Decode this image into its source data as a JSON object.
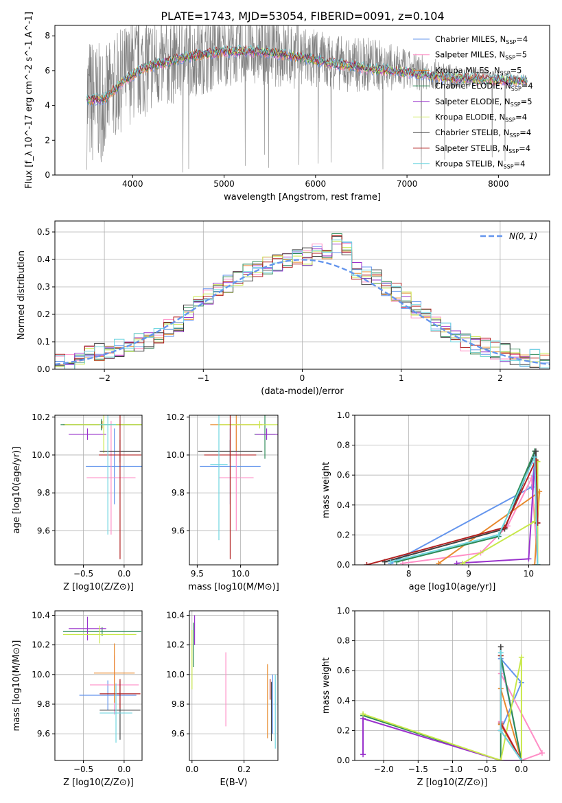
{
  "figure": {
    "title": "PLATE=1743, MJD=53054, FIBERID=0091, z=0.104"
  },
  "colors": {
    "series": [
      "#6495ed",
      "#ff8ec6",
      "#e88a2e",
      "#2e8b57",
      "#9932cc",
      "#c8e84a",
      "#404040",
      "#b22222",
      "#6fd6e0"
    ],
    "data_gray": "#808080",
    "normal_fit": "#6495ed",
    "grid": "#b0b0b0"
  },
  "legend": {
    "spectrum": [
      "Chabrier MILES, N_SSP=4",
      "Salpeter MILES, N_SSP=5",
      "Kroupa MILES, N_SSP=5",
      "Chabrier ELODIE, N_SSP=4",
      "Salpeter ELODIE, N_SSP=5",
      "Kroupa ELODIE, N_SSP=4",
      "Chabrier STELIB, N_SSP=4",
      "Salpeter STELIB, N_SSP=4",
      "Kroupa STELIB, N_SSP=4"
    ],
    "residuals": "N(0, 1)"
  },
  "chart_data": [
    {
      "id": "spectrum",
      "type": "line",
      "title": "PLATE=1743, MJD=53054, FIBERID=0091, z=0.104",
      "xlabel": "wavelength [Angstrom, rest frame]",
      "ylabel": "Flux [f_λ 10^-17 erg cm^-2 s^-1 A^-1]",
      "xlim": [
        3150,
        8560
      ],
      "ylim": [
        0,
        8.6
      ],
      "xticks": [
        4000,
        5000,
        6000,
        7000,
        8000
      ],
      "yticks": [
        0,
        2,
        4,
        6,
        8
      ],
      "grid": false,
      "legend_position": "top-right",
      "data_series": {
        "name": "",
        "color": "#808080",
        "x": [
          3500,
          3600,
          3700,
          3800,
          3900,
          4000,
          4100,
          4200,
          4300,
          4400,
          4500,
          4600,
          4700,
          4800,
          4900,
          5000,
          5200,
          5400,
          5600,
          5800,
          6000,
          6200,
          6400,
          6600,
          6800,
          7000,
          7200,
          7400,
          7600,
          7800,
          8000,
          8200,
          8320
        ],
        "y": [
          4.3,
          4.1,
          4.4,
          5.0,
          5.6,
          6.0,
          6.2,
          6.4,
          6.3,
          6.4,
          6.6,
          6.7,
          6.7,
          6.9,
          7.0,
          7.1,
          7.2,
          7.2,
          7.0,
          6.9,
          6.6,
          6.5,
          6.3,
          6.4,
          6.2,
          6.0,
          5.9,
          5.7,
          5.6,
          5.6,
          5.6,
          5.5,
          5.5
        ],
        "noise_envelope": [
          4.0,
          3.6,
          3.0,
          3.0,
          3.0,
          3.0,
          3.0,
          2.8,
          2.6,
          2.5,
          2.4,
          2.3,
          2.2,
          2.2,
          2.2,
          2.0,
          2.0,
          2.0,
          2.0,
          2.0,
          1.8,
          1.6,
          1.6,
          1.6,
          1.4,
          1.2,
          1.0,
          0.8,
          0.6,
          0.5,
          0.4,
          0.3,
          0.3
        ]
      },
      "models": {
        "x": [
          3500,
          3700,
          3900,
          4100,
          4300,
          4600,
          5000,
          5400,
          5800,
          6200,
          6600,
          7000,
          7400,
          7800,
          8200,
          8320
        ],
        "y": [
          4.3,
          4.4,
          5.4,
          6.1,
          6.4,
          6.8,
          7.1,
          7.1,
          6.8,
          6.4,
          6.1,
          5.9,
          5.6,
          5.5,
          5.4,
          5.4
        ]
      }
    },
    {
      "id": "residuals",
      "type": "line",
      "xlabel": "(data-model)/error",
      "ylabel": "Normed distribution",
      "xlim": [
        -2.5,
        2.5
      ],
      "ylim": [
        0,
        0.54
      ],
      "xticks": [
        -2,
        -1,
        0,
        1,
        2
      ],
      "yticks": [
        0.0,
        0.1,
        0.2,
        0.3,
        0.4,
        0.5
      ],
      "grid": true,
      "legend_position": "top-right",
      "bin_edges": [
        -2.5,
        -2.4,
        -2.3,
        -2.2,
        -2.1,
        -2.0,
        -1.9,
        -1.8,
        -1.7,
        -1.6,
        -1.5,
        -1.4,
        -1.3,
        -1.2,
        -1.1,
        -1.0,
        -0.9,
        -0.8,
        -0.7,
        -0.6,
        -0.5,
        -0.4,
        -0.3,
        -0.2,
        -0.1,
        0.0,
        0.1,
        0.2,
        0.3,
        0.4,
        0.5,
        0.6,
        0.7,
        0.8,
        0.9,
        1.0,
        1.1,
        1.2,
        1.3,
        1.4,
        1.5,
        1.6,
        1.7,
        1.8,
        1.9,
        2.0,
        2.1,
        2.2,
        2.3,
        2.4,
        2.5
      ],
      "hist_means": [
        0.02,
        0.025,
        0.03,
        0.05,
        0.06,
        0.07,
        0.08,
        0.09,
        0.1,
        0.11,
        0.13,
        0.15,
        0.16,
        0.2,
        0.24,
        0.27,
        0.29,
        0.31,
        0.33,
        0.35,
        0.37,
        0.38,
        0.39,
        0.4,
        0.41,
        0.41,
        0.43,
        0.42,
        0.46,
        0.43,
        0.36,
        0.34,
        0.33,
        0.3,
        0.28,
        0.25,
        0.22,
        0.19,
        0.16,
        0.14,
        0.12,
        0.1,
        0.09,
        0.08,
        0.07,
        0.06,
        0.05,
        0.045,
        0.04,
        0.035
      ],
      "normal_curve": "N(0,1) density"
    },
    {
      "id": "age-vs-Z",
      "type": "scatter",
      "xlabel": "Z [log10(Z/Z⊙)]",
      "ylabel": "age [log10(age/yr)]",
      "xlim": [
        -0.85,
        0.22
      ],
      "ylim": [
        9.42,
        10.21
      ],
      "xticks": [
        -0.5,
        0.0
      ],
      "yticks": [
        9.6,
        9.8,
        10.0,
        10.2
      ],
      "grid": true,
      "points": [
        {
          "series": 0,
          "x": -0.12,
          "y": 9.94,
          "xerr": 0.35,
          "yerr": 0.2
        },
        {
          "series": 1,
          "x": -0.16,
          "y": 9.88,
          "xerr": 0.3,
          "yerr": 0.3
        },
        {
          "series": 2,
          "x": -0.27,
          "y": 10.16,
          "xerr": 0.48,
          "yerr": 0.02
        },
        {
          "series": 3,
          "x": -0.28,
          "y": 10.16,
          "xerr": 0.5,
          "yerr": 0.03
        },
        {
          "series": 4,
          "x": -0.45,
          "y": 10.11,
          "xerr": 0.23,
          "yerr": 0.03
        },
        {
          "series": 5,
          "x": -0.25,
          "y": 10.16,
          "xerr": 0.48,
          "yerr": 0.15
        },
        {
          "series": 6,
          "x": -0.05,
          "y": 10.02,
          "xerr": 0.25,
          "yerr": 0.06
        },
        {
          "series": 7,
          "x": -0.05,
          "y": 10.0,
          "xerr": 0.26,
          "yerr": 0.55
        },
        {
          "series": 8,
          "x": -0.2,
          "y": 10.16,
          "xerr": 0.1,
          "yerr": 0.58
        }
      ]
    },
    {
      "id": "age-vs-mass",
      "type": "scatter",
      "xlabel": "mass [log10(M/M⊙)]",
      "ylabel": "",
      "xlim": [
        9.41,
        10.43
      ],
      "ylim": [
        9.42,
        10.21
      ],
      "xticks": [
        9.5,
        10.0
      ],
      "yticks": [
        9.6,
        9.8,
        10.0,
        10.2
      ],
      "grid": true,
      "points": [
        {
          "series": 0,
          "x": 9.88,
          "y": 9.94,
          "xerr": 0.35,
          "yerr": 0.2
        },
        {
          "series": 1,
          "x": 9.95,
          "y": 9.88,
          "xerr": 0.2,
          "yerr": 0.28
        },
        {
          "series": 2,
          "x": 9.95,
          "y": 10.16,
          "xerr": 0.3,
          "yerr": 0.14
        },
        {
          "series": 3,
          "x": 10.28,
          "y": 10.11,
          "xerr": 0.12,
          "yerr": 0.13
        },
        {
          "series": 4,
          "x": 10.3,
          "y": 10.11,
          "xerr": 0.13,
          "yerr": 0.03
        },
        {
          "series": 5,
          "x": 10.22,
          "y": 10.16,
          "xerr": 0.48,
          "yerr": 0.02
        },
        {
          "series": 6,
          "x": 9.88,
          "y": 10.02,
          "xerr": 0.37,
          "yerr": 0.06
        },
        {
          "series": 7,
          "x": 9.88,
          "y": 10.0,
          "xerr": 0.3,
          "yerr": 0.55
        },
        {
          "series": 8,
          "x": 9.75,
          "y": 9.95,
          "xerr": 0.1,
          "yerr": 0.4
        }
      ]
    },
    {
      "id": "massweight-vs-age",
      "type": "line",
      "xlabel": "age [log10(age/yr)]",
      "ylabel": "mass weight",
      "xlim": [
        7.1,
        10.35
      ],
      "ylim": [
        0,
        1.0
      ],
      "xticks": [
        8,
        9,
        10
      ],
      "yticks": [
        0.0,
        0.2,
        0.4,
        0.6,
        0.8,
        1.0
      ],
      "grid": true,
      "series": [
        {
          "name": "Chabrier MILES, N_SSP=4",
          "x": [
            7.7,
            10.05,
            10.1,
            10.15
          ],
          "y": [
            0.01,
            0.52,
            0.68,
            0.0
          ]
        },
        {
          "name": "Salpeter MILES, N_SSP=5",
          "x": [
            7.9,
            9.2,
            9.65,
            10.05,
            10.15
          ],
          "y": [
            0.01,
            0.08,
            0.26,
            0.58,
            0.0
          ]
        },
        {
          "name": "Kroupa MILES, N_SSP=5",
          "x": [
            8.5,
            10.15,
            10.18,
            10.1
          ],
          "y": [
            0.01,
            0.48,
            0.49,
            0.0
          ]
        },
        {
          "name": "Chabrier ELODIE, N_SSP=4",
          "x": [
            7.8,
            9.5,
            10.1,
            10.15
          ],
          "y": [
            0.02,
            0.19,
            0.76,
            0.0
          ]
        },
        {
          "name": "Salpeter ELODIE, N_SSP=5",
          "x": [
            8.8,
            10.0,
            10.1,
            10.15
          ],
          "y": [
            0.01,
            0.04,
            0.68,
            0.0
          ]
        },
        {
          "name": "Kroupa ELODIE, N_SSP=4",
          "x": [
            8.9,
            10.1,
            10.15,
            10.15
          ],
          "y": [
            0.01,
            0.29,
            0.69,
            0.0
          ]
        },
        {
          "name": "Chabrier STELIB, N_SSP=4",
          "x": [
            7.6,
            9.6,
            10.12,
            10.15
          ],
          "y": [
            0.02,
            0.24,
            0.76,
            0.28
          ]
        },
        {
          "name": "Salpeter STELIB, N_SSP=4",
          "x": [
            7.3,
            9.6,
            10.12,
            10.15
          ],
          "y": [
            0.0,
            0.25,
            0.7,
            0.28
          ]
        },
        {
          "name": "Kroupa STELIB, N_SSP=4",
          "x": [
            7.7,
            9.5,
            10.1,
            10.15
          ],
          "y": [
            0.02,
            0.2,
            0.72,
            0.0
          ]
        }
      ]
    },
    {
      "id": "mass-vs-Z",
      "type": "scatter",
      "xlabel": "Z [log10(Z/Z⊙)]",
      "ylabel": "mass [log10(M/M⊙)]",
      "xlim": [
        -0.85,
        0.22
      ],
      "ylim": [
        9.42,
        10.43
      ],
      "xticks": [
        -0.5,
        0.0
      ],
      "yticks": [
        9.6,
        9.8,
        10.0,
        10.2,
        10.4
      ],
      "grid": true,
      "points": [
        {
          "series": 0,
          "x": -0.2,
          "y": 9.86,
          "xerr": 0.35,
          "yerr": 0.1
        },
        {
          "series": 1,
          "x": -0.12,
          "y": 9.93,
          "xerr": 0.3,
          "yerr": 0.2
        },
        {
          "series": 2,
          "x": -0.12,
          "y": 10.01,
          "xerr": 0.25,
          "yerr": 0.2
        },
        {
          "series": 3,
          "x": -0.27,
          "y": 10.29,
          "xerr": 0.48,
          "yerr": 0.03
        },
        {
          "series": 4,
          "x": -0.45,
          "y": 10.31,
          "xerr": 0.23,
          "yerr": 0.08
        },
        {
          "series": 5,
          "x": -0.3,
          "y": 10.27,
          "xerr": 0.45,
          "yerr": 0.06
        },
        {
          "series": 6,
          "x": -0.05,
          "y": 9.76,
          "xerr": 0.25,
          "yerr": 0.2
        },
        {
          "series": 7,
          "x": -0.05,
          "y": 9.87,
          "xerr": 0.25,
          "yerr": 0.1
        },
        {
          "series": 8,
          "x": -0.1,
          "y": 9.74,
          "xerr": 0.2,
          "yerr": 0.2
        }
      ]
    },
    {
      "id": "mass-vs-EBV",
      "type": "scatter",
      "xlabel": "E(B-V)",
      "ylabel": "",
      "xlim": [
        -0.01,
        0.33
      ],
      "ylim": [
        9.42,
        10.43
      ],
      "xticks": [
        0.0,
        0.2
      ],
      "yticks": [
        9.6,
        9.8,
        10.0,
        10.2,
        10.4
      ],
      "grid": true,
      "points": [
        {
          "series": 0,
          "x": 0.31,
          "y": 9.8,
          "xerr": 0.0,
          "yerr": 0.2
        },
        {
          "series": 1,
          "x": 0.13,
          "y": 9.9,
          "xerr": 0.0,
          "yerr": 0.25
        },
        {
          "series": 2,
          "x": 0.29,
          "y": 9.82,
          "xerr": 0.0,
          "yerr": 0.25
        },
        {
          "series": 3,
          "x": 0.005,
          "y": 10.2,
          "xerr": 0.0,
          "yerr": 0.15
        },
        {
          "series": 4,
          "x": 0.01,
          "y": 10.3,
          "xerr": 0.0,
          "yerr": 0.1
        },
        {
          "series": 5,
          "x": 0.0,
          "y": 10.1,
          "xerr": 0.0,
          "yerr": 0.2
        },
        {
          "series": 6,
          "x": 0.305,
          "y": 9.75,
          "xerr": 0.0,
          "yerr": 0.2
        },
        {
          "series": 7,
          "x": 0.3,
          "y": 9.9,
          "xerr": 0.0,
          "yerr": 0.07
        },
        {
          "series": 8,
          "x": 0.32,
          "y": 9.75,
          "xerr": 0.0,
          "yerr": 0.25
        }
      ]
    },
    {
      "id": "massweight-vs-Z",
      "type": "line",
      "xlabel": "Z [log10(Z/Z⊙)]",
      "ylabel": "mass weight",
      "xlim": [
        -2.42,
        0.41
      ],
      "ylim": [
        0,
        1.0
      ],
      "xticks": [
        -2.0,
        -1.5,
        -1.0,
        -0.5,
        0.0
      ],
      "yticks": [
        0.0,
        0.2,
        0.4,
        0.6,
        0.8,
        1.0
      ],
      "grid": true,
      "series": [
        {
          "name": "Chabrier MILES, N_SSP=4",
          "x": [
            -0.3,
            0.0,
            -0.3,
            0.0
          ],
          "y": [
            0.2,
            0.52,
            0.68,
            0.0
          ]
        },
        {
          "name": "Salpeter MILES, N_SSP=5",
          "x": [
            -0.3,
            0.0,
            0.3,
            -0.3
          ],
          "y": [
            0.26,
            0.0,
            0.05,
            0.58
          ]
        },
        {
          "name": "Kroupa MILES, N_SSP=5",
          "x": [
            -0.3,
            0.0,
            -0.3
          ],
          "y": [
            0.48,
            0.0,
            0.24
          ]
        },
        {
          "name": "Chabrier ELODIE, N_SSP=4",
          "x": [
            -2.3,
            -0.3,
            -0.3,
            0.0
          ],
          "y": [
            0.3,
            0.0,
            0.7,
            0.0
          ]
        },
        {
          "name": "Salpeter ELODIE, N_SSP=5",
          "x": [
            -2.3,
            -2.3,
            -0.3,
            0.0
          ],
          "y": [
            0.04,
            0.28,
            0.0,
            0.0
          ]
        },
        {
          "name": "Kroupa ELODIE, N_SSP=4",
          "x": [
            -2.3,
            -0.3,
            0.0,
            0.0
          ],
          "y": [
            0.31,
            0.0,
            0.69,
            0.0
          ]
        },
        {
          "name": "Chabrier STELIB, N_SSP=4",
          "x": [
            -0.3,
            -0.3,
            0.0
          ],
          "y": [
            0.76,
            0.2,
            0.0
          ]
        },
        {
          "name": "Salpeter STELIB, N_SSP=4",
          "x": [
            -0.3,
            -0.3,
            0.0
          ],
          "y": [
            0.7,
            0.25,
            0.0
          ]
        },
        {
          "name": "Kroupa STELIB, N_SSP=4",
          "x": [
            -0.3,
            -0.3,
            0.0
          ],
          "y": [
            0.72,
            0.2,
            0.0
          ]
        }
      ]
    }
  ]
}
